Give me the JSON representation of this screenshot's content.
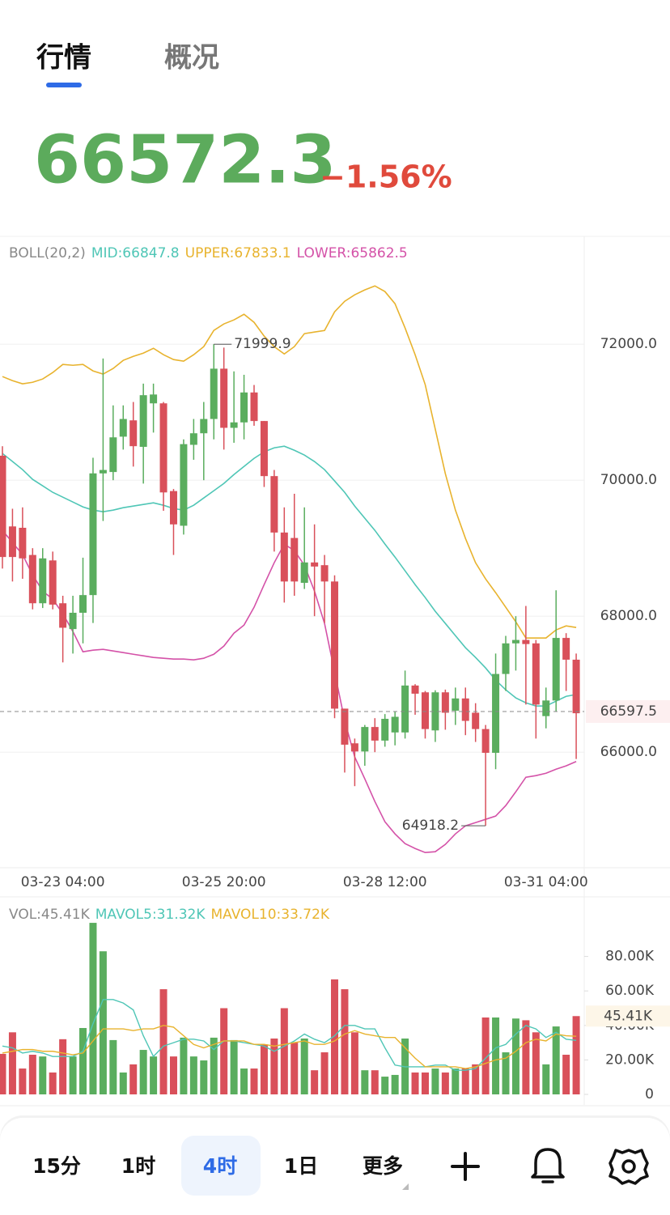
{
  "tabs": [
    "行情",
    "概况"
  ],
  "quote": {
    "price": "66572.3",
    "change": "−1.56%"
  },
  "chart_data": [
    {
      "type": "candlestick",
      "legend": "BOLL(20,2)",
      "up_color": "#5aad5e",
      "down_color": "#d9505a",
      "categories": [
        null,
        null,
        null,
        null,
        null,
        null,
        "03-23 04:00",
        null,
        null,
        null,
        null,
        null,
        null,
        null,
        null,
        null,
        null,
        null,
        null,
        null,
        null,
        null,
        "03-25 20:00",
        null,
        null,
        null,
        null,
        null,
        null,
        null,
        null,
        null,
        null,
        null,
        null,
        null,
        null,
        null,
        "03-28 12:00",
        null,
        null,
        null,
        null,
        null,
        null,
        null,
        null,
        null,
        null,
        null,
        null,
        null,
        null,
        null,
        "03-31 04:00",
        null,
        null,
        null
      ],
      "open": [
        70360,
        69320,
        69300,
        68900,
        68190,
        68820,
        68190,
        67810,
        68050,
        68310,
        70100,
        70120,
        70640,
        70880,
        70490,
        71130,
        71130,
        69840,
        69330,
        70520,
        70690,
        70900,
        71640,
        70770,
        70850,
        71290,
        70870,
        70060,
        69230,
        69150,
        68490,
        68790,
        68750,
        68510,
        66640,
        66130,
        66010,
        66370,
        66170,
        66290,
        66290,
        66980,
        66880,
        66320,
        66880,
        66610,
        66790,
        66580,
        66340,
        65990,
        67150,
        67600,
        67650,
        67600,
        66530,
        66760,
        67680,
        67360
      ],
      "high": [
        70500,
        69580,
        69600,
        69000,
        69000,
        68950,
        68300,
        68300,
        68860,
        70330,
        71790,
        71100,
        71100,
        71150,
        71420,
        71420,
        71150,
        69870,
        70600,
        70900,
        71150,
        71999.9,
        71950,
        71600,
        71550,
        71400,
        70870,
        70150,
        69600,
        69800,
        69600,
        69350,
        68900,
        68600,
        66640,
        66200,
        66400,
        66500,
        66560,
        66600,
        67200,
        67000,
        66900,
        66910,
        66920,
        66950,
        66950,
        66720,
        66400,
        67450,
        67710,
        68000,
        68150,
        67650,
        66950,
        68380,
        67750,
        67450
      ],
      "low": [
        68700,
        68510,
        68550,
        68100,
        68120,
        68100,
        67320,
        67450,
        67600,
        67900,
        69400,
        70000,
        70450,
        70200,
        69950,
        70700,
        69550,
        68900,
        69200,
        70300,
        70000,
        70600,
        70450,
        70550,
        70600,
        70800,
        69900,
        68950,
        68200,
        68300,
        68400,
        68000,
        67900,
        66500,
        65700,
        65500,
        65800,
        66000,
        66080,
        66100,
        66200,
        66550,
        66200,
        66150,
        66330,
        66400,
        66250,
        66150,
        64918.2,
        65750,
        66900,
        67200,
        66700,
        66200,
        66350,
        66600,
        66900,
        65900
      ],
      "close": [
        68870,
        68870,
        68850,
        68190,
        68850,
        68170,
        67830,
        68050,
        68310,
        70100,
        70150,
        70630,
        70900,
        70500,
        71250,
        71260,
        69820,
        69350,
        70530,
        70690,
        70900,
        71640,
        70770,
        70850,
        71290,
        70870,
        70060,
        69230,
        68510,
        68510,
        68790,
        68730,
        68510,
        66640,
        66110,
        66010,
        66370,
        66170,
        66490,
        66520,
        66980,
        66860,
        66340,
        66880,
        66580,
        66790,
        66460,
        66340,
        65990,
        67150,
        67600,
        67650,
        67590,
        66700,
        66760,
        67680,
        67360,
        66572.3
      ],
      "lines": [
        {
          "name": "MID:66847.8",
          "color": "#4fc6b6",
          "values": [
            70393,
            70274,
            70155,
            70012,
            69917,
            69821,
            69750,
            69679,
            69607,
            69560,
            69536,
            69560,
            69595,
            69619,
            69643,
            69667,
            69631,
            69583,
            69560,
            69631,
            69738,
            69845,
            69952,
            70083,
            70202,
            70321,
            70417,
            70476,
            70500,
            70440,
            70369,
            70274,
            70155,
            69988,
            69821,
            69619,
            69440,
            69262,
            69060,
            68869,
            68667,
            68464,
            68274,
            68071,
            67893,
            67714,
            67536,
            67393,
            67238,
            67060,
            66917,
            66798,
            66726,
            66679,
            66679,
            66750,
            66821,
            66847.8
          ]
        },
        {
          "name": "UPPER:67833.1",
          "color": "#e8b32e",
          "values": [
            71524,
            71464,
            71417,
            71440,
            71488,
            71583,
            71702,
            71690,
            71702,
            71607,
            71560,
            71643,
            71762,
            71821,
            71869,
            71940,
            71845,
            71774,
            71750,
            71845,
            71964,
            72202,
            72298,
            72357,
            72440,
            72321,
            72119,
            71964,
            71857,
            71964,
            72155,
            72179,
            72202,
            72476,
            72631,
            72726,
            72798,
            72857,
            72774,
            72595,
            72238,
            71845,
            71405,
            70750,
            70095,
            69560,
            69143,
            68786,
            68548,
            68345,
            68131,
            67917,
            67679,
            67679,
            67679,
            67798,
            67857,
            67833.1
          ]
        },
        {
          "name": "LOWER:65862.5",
          "color": "#d452a8",
          "values": [
            69262,
            69083,
            68905,
            68607,
            68369,
            68250,
            68036,
            67774,
            67476,
            67500,
            67512,
            67488,
            67464,
            67440,
            67417,
            67393,
            67381,
            67369,
            67369,
            67357,
            67381,
            67440,
            67560,
            67750,
            67869,
            68131,
            68464,
            68786,
            69059,
            68964,
            68750,
            68369,
            67893,
            67179,
            66464,
            65929,
            65607,
            65274,
            64976,
            64798,
            64655,
            64583,
            64524,
            64536,
            64643,
            64798,
            64917,
            64964,
            65012,
            65060,
            65214,
            65417,
            65631,
            65655,
            65690,
            65750,
            65798,
            65862.5
          ]
        }
      ],
      "ylim": [
        64300,
        73550
      ],
      "yticks": [
        {
          "value": 66000,
          "label": "66000.0"
        },
        {
          "value": 68000,
          "label": "68000.0"
        },
        {
          "value": 70000,
          "label": "70000.0"
        },
        {
          "value": 72000,
          "label": "72000.0"
        }
      ],
      "price_line": 66597.5,
      "grid": true
    },
    {
      "type": "volume",
      "legend": "VOL:45.41K",
      "values": [
        23.5,
        36,
        15,
        23,
        22,
        12.7,
        32,
        22,
        38.5,
        99.5,
        83,
        31.5,
        12.7,
        17.4,
        25.8,
        22,
        61,
        22,
        32.9,
        22,
        19.7,
        32.9,
        50,
        31.5,
        15,
        15,
        29,
        32.4,
        50,
        30,
        32.4,
        14,
        24.4,
        66.7,
        61,
        36,
        14,
        14,
        10.3,
        11.3,
        32.4,
        12.7,
        12.7,
        15,
        12.7,
        15,
        15,
        17.4,
        44.6,
        44.6,
        24.4,
        44,
        43,
        36,
        17.4,
        39.4,
        23,
        45.41
      ],
      "last_label": "45.41K",
      "lines": [
        {
          "name": "MAVOL5:31.32K",
          "color": "#4fc6b6",
          "values": [
            28,
            27,
            24,
            25,
            24,
            22,
            22,
            22,
            25,
            41,
            55,
            55,
            53,
            49,
            34,
            22,
            28,
            30,
            32,
            32,
            31,
            26,
            31,
            31,
            30,
            29,
            28,
            25,
            28,
            31,
            35,
            32,
            30,
            34,
            40,
            40,
            38,
            38,
            27,
            17,
            16,
            16,
            16,
            17,
            17,
            14,
            14,
            15,
            21,
            27,
            29,
            35,
            40,
            38,
            33,
            36,
            32,
            31.32
          ]
        },
        {
          "name": "MAVOL10:33.72K",
          "color": "#e8b32e",
          "values": [
            24,
            25,
            26,
            26,
            25,
            25,
            24,
            23,
            24,
            31,
            38,
            38,
            38,
            37,
            38,
            38,
            40,
            39,
            34,
            29,
            27,
            29,
            31,
            31,
            31,
            29,
            29,
            28,
            29,
            30,
            31,
            29,
            29,
            31,
            35,
            37,
            35,
            34,
            33,
            33,
            27,
            21,
            16,
            16,
            16,
            16,
            15,
            16,
            18,
            20,
            21,
            25,
            30,
            32,
            31,
            35,
            34,
            33.72
          ]
        }
      ],
      "ylim": [
        0,
        100
      ],
      "yticks": [
        {
          "value": 0,
          "label": "0"
        },
        {
          "value": 20,
          "label": "20.00K"
        },
        {
          "value": 40,
          "label": "40.00K"
        },
        {
          "value": 60,
          "label": "60.00K"
        },
        {
          "value": 80,
          "label": "80.00K"
        }
      ]
    }
  ],
  "toolbar": [
    "15分",
    "1时",
    "4时",
    "1日",
    "更多"
  ]
}
